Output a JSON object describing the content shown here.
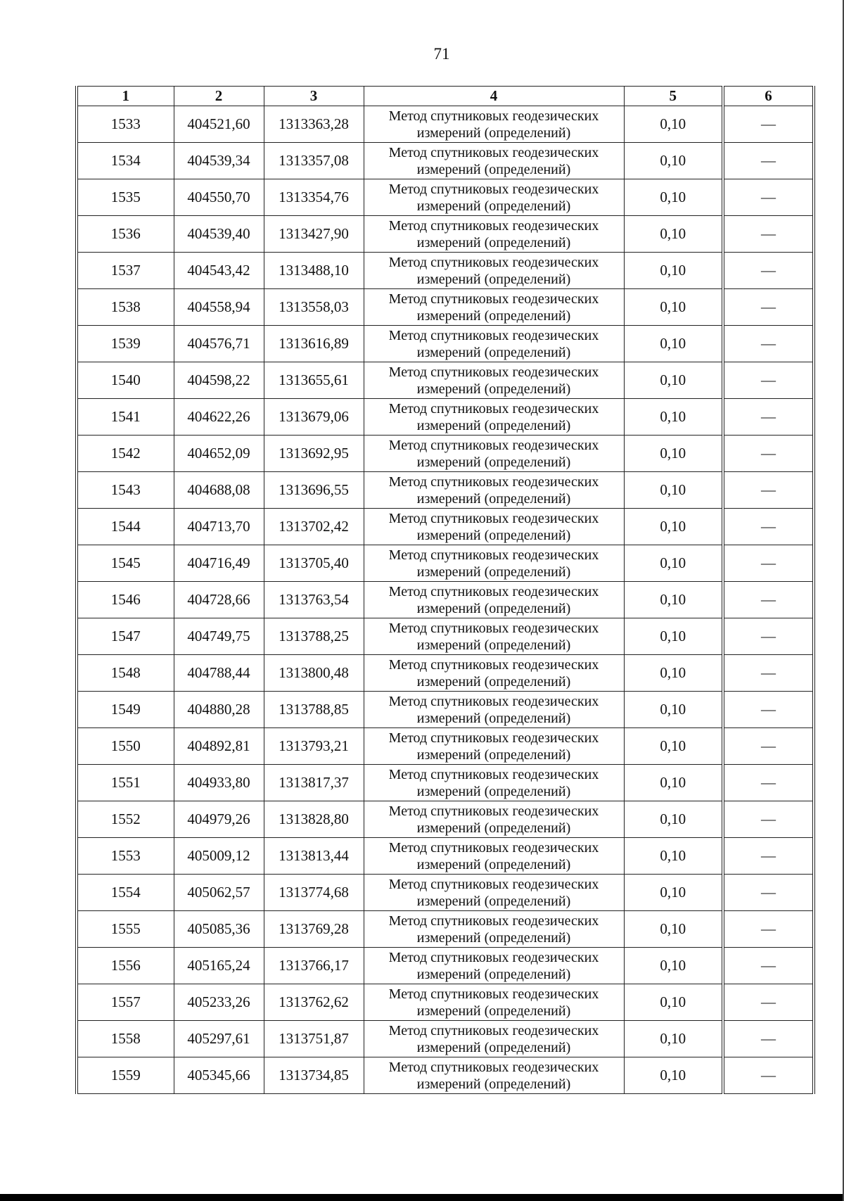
{
  "page_number": "71",
  "headers": [
    "1",
    "2",
    "3",
    "4",
    "5",
    "6"
  ],
  "rows": [
    [
      "1533",
      "404521,60",
      "1313363,28",
      "Метод спутниковых геодезических измерений (определений)",
      "0,10",
      "—"
    ],
    [
      "1534",
      "404539,34",
      "1313357,08",
      "Метод спутниковых геодезических измерений (определений)",
      "0,10",
      "—"
    ],
    [
      "1535",
      "404550,70",
      "1313354,76",
      "Метод спутниковых геодезических измерений (определений)",
      "0,10",
      "—"
    ],
    [
      "1536",
      "404539,40",
      "1313427,90",
      "Метод спутниковых геодезических измерений (определений)",
      "0,10",
      "—"
    ],
    [
      "1537",
      "404543,42",
      "1313488,10",
      "Метод спутниковых геодезических измерений (определений)",
      "0,10",
      "—"
    ],
    [
      "1538",
      "404558,94",
      "1313558,03",
      "Метод спутниковых геодезических измерений (определений)",
      "0,10",
      "—"
    ],
    [
      "1539",
      "404576,71",
      "1313616,89",
      "Метод спутниковых геодезических измерений (определений)",
      "0,10",
      "—"
    ],
    [
      "1540",
      "404598,22",
      "1313655,61",
      "Метод спутниковых геодезических измерений (определений)",
      "0,10",
      "—"
    ],
    [
      "1541",
      "404622,26",
      "1313679,06",
      "Метод спутниковых геодезических измерений (определений)",
      "0,10",
      "—"
    ],
    [
      "1542",
      "404652,09",
      "1313692,95",
      "Метод спутниковых геодезических измерений (определений)",
      "0,10",
      "—"
    ],
    [
      "1543",
      "404688,08",
      "1313696,55",
      "Метод спутниковых геодезических измерений (определений)",
      "0,10",
      "—"
    ],
    [
      "1544",
      "404713,70",
      "1313702,42",
      "Метод спутниковых геодезических измерений (определений)",
      "0,10",
      "—"
    ],
    [
      "1545",
      "404716,49",
      "1313705,40",
      "Метод спутниковых геодезических измерений (определений)",
      "0,10",
      "—"
    ],
    [
      "1546",
      "404728,66",
      "1313763,54",
      "Метод спутниковых геодезических измерений (определений)",
      "0,10",
      "—"
    ],
    [
      "1547",
      "404749,75",
      "1313788,25",
      "Метод спутниковых геодезических измерений (определений)",
      "0,10",
      "—"
    ],
    [
      "1548",
      "404788,44",
      "1313800,48",
      "Метод спутниковых геодезических измерений (определений)",
      "0,10",
      "—"
    ],
    [
      "1549",
      "404880,28",
      "1313788,85",
      "Метод спутниковых геодезических измерений (определений)",
      "0,10",
      "—"
    ],
    [
      "1550",
      "404892,81",
      "1313793,21",
      "Метод спутниковых геодезических измерений (определений)",
      "0,10",
      "—"
    ],
    [
      "1551",
      "404933,80",
      "1313817,37",
      "Метод спутниковых геодезических измерений (определений)",
      "0,10",
      "—"
    ],
    [
      "1552",
      "404979,26",
      "1313828,80",
      "Метод спутниковых геодезических измерений (определений)",
      "0,10",
      "—"
    ],
    [
      "1553",
      "405009,12",
      "1313813,44",
      "Метод спутниковых геодезических измерений (определений)",
      "0,10",
      "—"
    ],
    [
      "1554",
      "405062,57",
      "1313774,68",
      "Метод спутниковых геодезических измерений (определений)",
      "0,10",
      "—"
    ],
    [
      "1555",
      "405085,36",
      "1313769,28",
      "Метод спутниковых геодезических измерений (определений)",
      "0,10",
      "—"
    ],
    [
      "1556",
      "405165,24",
      "1313766,17",
      "Метод спутниковых геодезических измерений (определений)",
      "0,10",
      "—"
    ],
    [
      "1557",
      "405233,26",
      "1313762,62",
      "Метод спутниковых геодезических измерений (определений)",
      "0,10",
      "—"
    ],
    [
      "1558",
      "405297,61",
      "1313751,87",
      "Метод спутниковых геодезических измерений (определений)",
      "0,10",
      "—"
    ],
    [
      "1559",
      "405345,66",
      "1313734,85",
      "Метод спутниковых геодезических измерений (определений)",
      "0,10",
      "—"
    ]
  ]
}
